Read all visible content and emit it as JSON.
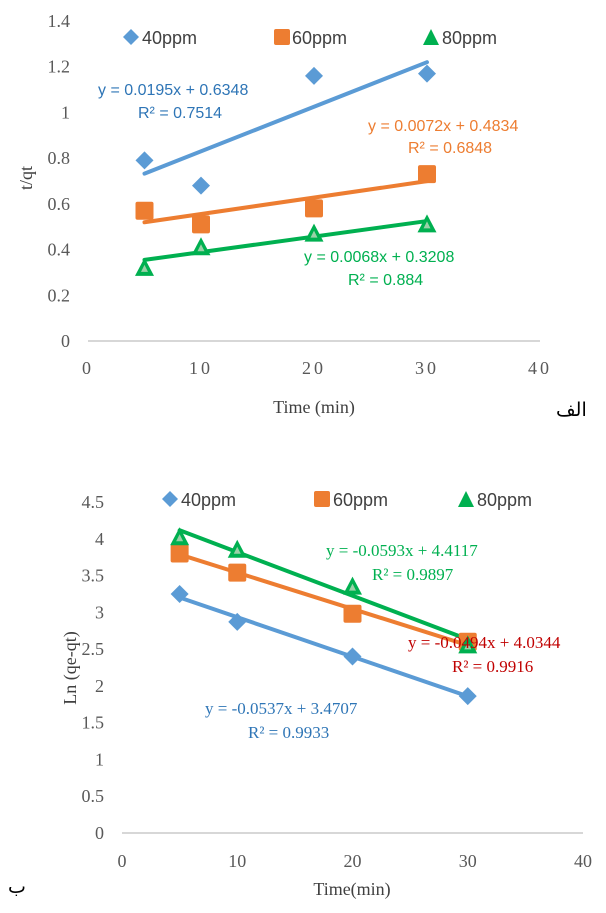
{
  "colors": {
    "blue": "#5B9BD5",
    "orange": "#ED7D31",
    "green": "#00B050",
    "blue_text": "#2E75B6",
    "red_text": "#C00000",
    "axis": "#BFBFBF"
  },
  "chart_data": [
    {
      "type": "scatter",
      "panel_label": "الف",
      "xlabel": "Time (min)",
      "ylabel": "t/qt",
      "xlim": [
        0,
        40
      ],
      "ylim": [
        0,
        1.4
      ],
      "xticks": [
        0,
        10,
        20,
        30,
        40
      ],
      "yticks": [
        0,
        0.2,
        0.4,
        0.6,
        0.8,
        1,
        1.2,
        1.4
      ],
      "ytick_labels": [
        "0",
        "0.2",
        "0.4",
        "0.6",
        "0.8",
        "1",
        "1.2",
        "1.4"
      ],
      "grid": false,
      "legend": "top",
      "series": [
        {
          "name": "40ppm",
          "marker": "diamond",
          "color": "#5B9BD5",
          "x": [
            5,
            10,
            20,
            30
          ],
          "y": [
            0.79,
            0.68,
            1.16,
            1.17
          ],
          "trendline": {
            "slope": 0.0195,
            "intercept": 0.6348,
            "x_range": [
              5,
              30
            ]
          },
          "equation": "y = 0.0195x + 0.6348",
          "r2": "R² = 0.7514",
          "label_color": "#2E75B6"
        },
        {
          "name": "60ppm",
          "marker": "square",
          "color": "#ED7D31",
          "x": [
            5,
            10,
            20,
            30
          ],
          "y": [
            0.57,
            0.51,
            0.58,
            0.73
          ],
          "trendline": {
            "slope": 0.0072,
            "intercept": 0.4834,
            "x_range": [
              5,
              30
            ]
          },
          "equation": "y = 0.0072x + 0.4834",
          "r2": "R² = 0.6848",
          "label_color": "#ED7D31"
        },
        {
          "name": "80ppm",
          "marker": "triangle",
          "color": "#00B050",
          "x": [
            5,
            10,
            20,
            30
          ],
          "y": [
            0.32,
            0.41,
            0.47,
            0.51
          ],
          "trendline": {
            "slope": 0.0068,
            "intercept": 0.3208,
            "x_range": [
              5,
              30
            ]
          },
          "equation": "y = 0.0068x + 0.3208",
          "r2": "R² = 0.884",
          "label_color": "#00B050"
        }
      ]
    },
    {
      "type": "scatter",
      "panel_label": "ب",
      "xlabel": "Time(min)",
      "ylabel": "Ln (qe-qt)",
      "xlim": [
        0,
        40
      ],
      "ylim": [
        0,
        4.5
      ],
      "xticks": [
        0,
        10,
        20,
        30,
        40
      ],
      "yticks": [
        0,
        0.5,
        1,
        1.5,
        2,
        2.5,
        3,
        3.5,
        4,
        4.5
      ],
      "ytick_labels": [
        "0",
        "0.5",
        "1",
        "1.5",
        "2",
        "2.5",
        "3",
        "3.5",
        "4",
        "4.5"
      ],
      "grid": false,
      "legend": "top",
      "series": [
        {
          "name": "40ppm",
          "marker": "diamond",
          "color": "#5B9BD5",
          "x": [
            5,
            10,
            20,
            30
          ],
          "y": [
            3.25,
            2.87,
            2.4,
            1.86
          ],
          "trendline": {
            "slope": -0.0537,
            "intercept": 3.4707,
            "x_range": [
              5,
              30
            ]
          },
          "equation": "y = -0.0537x + 3.4707",
          "r2": "R² = 0.9933",
          "label_color": "#2E75B6"
        },
        {
          "name": "60ppm",
          "marker": "square",
          "color": "#ED7D31",
          "x": [
            5,
            10,
            20,
            30
          ],
          "y": [
            3.8,
            3.54,
            2.98,
            2.6
          ],
          "trendline": {
            "slope": -0.0494,
            "intercept": 4.0344,
            "x_range": [
              5,
              30
            ]
          },
          "equation": "y = -0.0494x + 4.0344",
          "r2": "R² = 0.9916",
          "label_color": "#C00000"
        },
        {
          "name": "80ppm",
          "marker": "triangle",
          "color": "#00B050",
          "x": [
            5,
            10,
            20,
            30
          ],
          "y": [
            4.02,
            3.85,
            3.35,
            2.55
          ],
          "trendline": {
            "slope": -0.0593,
            "intercept": 4.4117,
            "x_range": [
              5,
              30
            ]
          },
          "equation": "y = -0.0593x + 4.4117",
          "r2": "R² = 0.9897",
          "label_color": "#00B050"
        }
      ]
    }
  ]
}
